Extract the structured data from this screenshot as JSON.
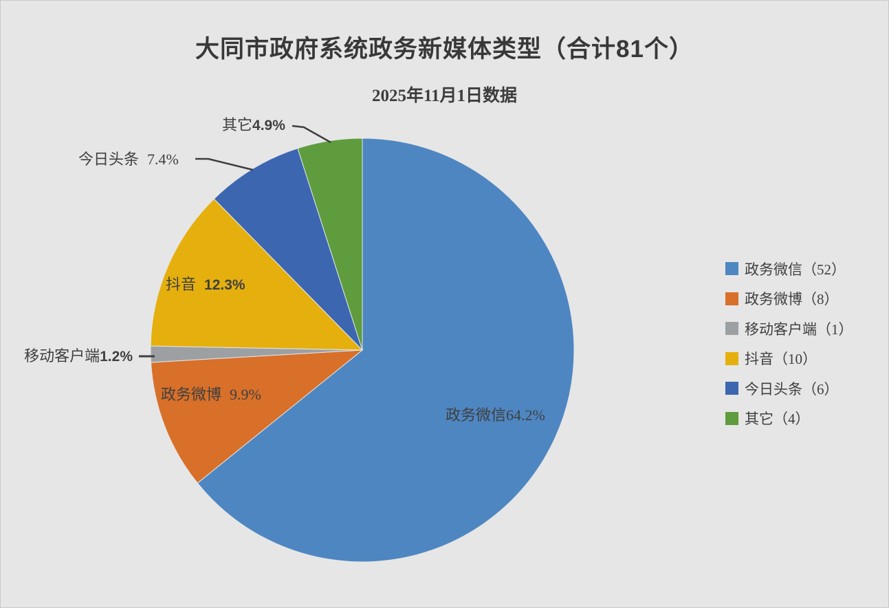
{
  "header": {
    "title": "大同市政府系统政务新媒体类型（合计81个）",
    "subtitle": "2025年11月1日数据"
  },
  "chart_data": {
    "type": "pie",
    "title": "大同市政府系统政务新媒体类型（合计81个）",
    "subtitle": "2025年11月1日数据",
    "total": 81,
    "categories": [
      "政务微信",
      "政务微博",
      "移动客户端",
      "抖音",
      "今日头条",
      "其它"
    ],
    "values": [
      52,
      8,
      1,
      10,
      6,
      4
    ],
    "percentages": [
      64.2,
      9.9,
      1.2,
      12.3,
      7.4,
      4.9
    ],
    "colors": [
      "#4e86c1",
      "#d8702a",
      "#9da0a3",
      "#e5b00e",
      "#3c66b0",
      "#5e9c3e"
    ],
    "slugs": [
      "weixin",
      "weibo",
      "mobile-client",
      "douyin",
      "toutiao",
      "other"
    ],
    "start_angle_deg": -90,
    "direction": "clockwise",
    "legend_position": "right",
    "background_color": "#e6e6e6",
    "legend_labels": [
      "政务微信（52）",
      "政务微博（8）",
      "移动客户端（1）",
      "抖音（10）",
      "今日头条（6）",
      "其它（4）"
    ],
    "slice_labels": [
      {
        "name": "政务微信",
        "pct": "64.2%"
      },
      {
        "name": "政务微博",
        "pct": "9.9%"
      },
      {
        "name": "移动客户端",
        "pct": "1.2%"
      },
      {
        "name": "抖音",
        "pct": "12.3%"
      },
      {
        "name": "今日头条",
        "pct": "7.4%"
      },
      {
        "name": "其它",
        "pct": "4.9%"
      }
    ]
  }
}
